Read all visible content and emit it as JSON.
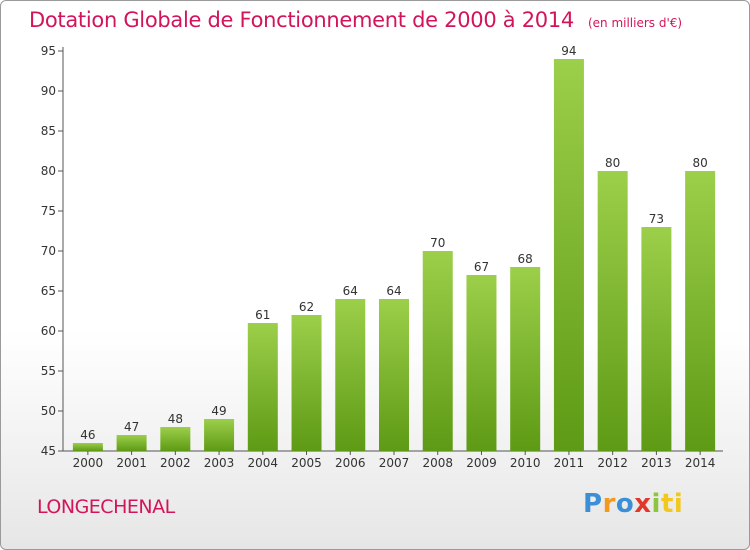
{
  "header": {
    "title": "Dotation Globale de Fonctionnement de 2000 à 2014",
    "subtitle": "(en milliers d'€)"
  },
  "footer": {
    "commune": "LONGECHENAL",
    "logo_letters": [
      "P",
      "r",
      "o",
      "x",
      "i",
      "ti"
    ]
  },
  "colors": {
    "title": "#d4145a",
    "bar_top": "#9ccf4a",
    "bar_bottom": "#5e9a15"
  },
  "chart_data": {
    "type": "bar",
    "title": "Dotation Globale de Fonctionnement de 2000 à 2014",
    "subtitle": "(en milliers d'€)",
    "xlabel": "",
    "ylabel": "",
    "categories": [
      "2000",
      "2001",
      "2002",
      "2003",
      "2004",
      "2005",
      "2006",
      "2007",
      "2008",
      "2009",
      "2010",
      "2011",
      "2012",
      "2013",
      "2014"
    ],
    "values": [
      46,
      47,
      48,
      49,
      61,
      62,
      64,
      64,
      70,
      67,
      68,
      94,
      80,
      73,
      80
    ],
    "ylim": [
      45,
      95
    ],
    "yticks": [
      45,
      50,
      55,
      60,
      65,
      70,
      75,
      80,
      85,
      90,
      95
    ],
    "grid": false,
    "legend": "none"
  }
}
